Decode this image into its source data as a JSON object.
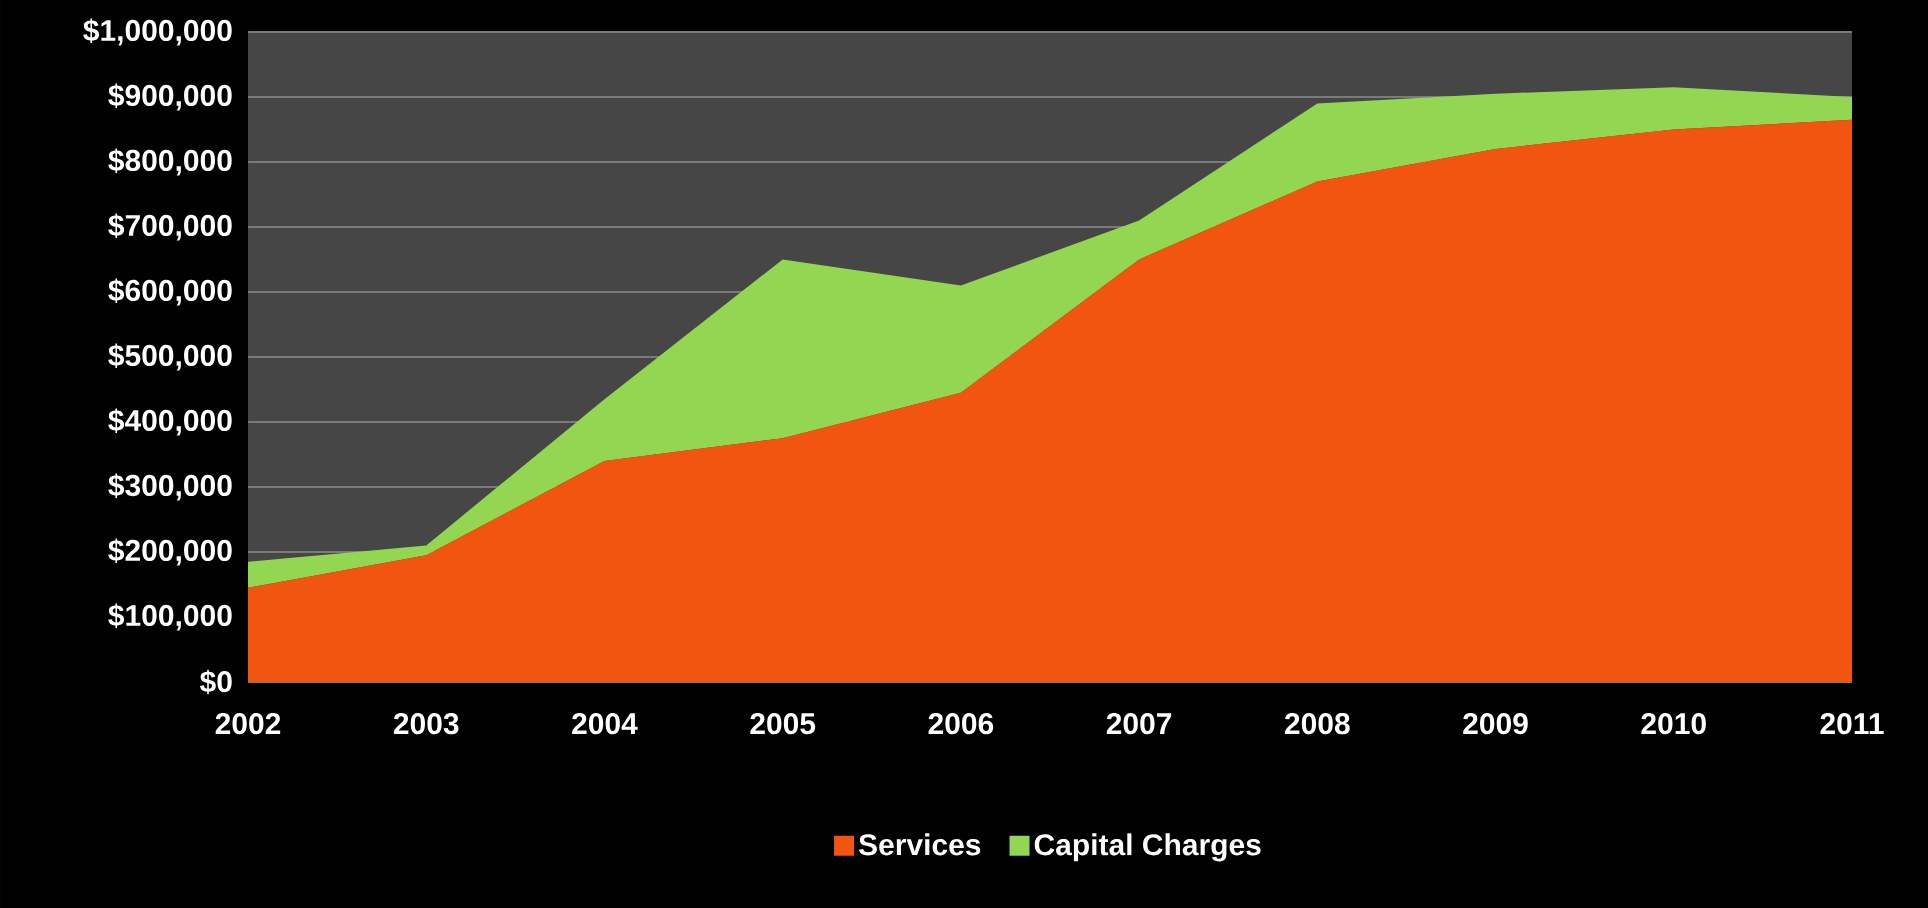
{
  "chart_data": {
    "type": "area",
    "stacked": true,
    "categories": [
      "2002",
      "2003",
      "2004",
      "2005",
      "2006",
      "2007",
      "2008",
      "2009",
      "2010",
      "2011"
    ],
    "series": [
      {
        "name": "Services",
        "color": "#f25510",
        "values": [
          145000,
          195000,
          340000,
          375000,
          445000,
          650000,
          770000,
          820000,
          850000,
          865000
        ]
      },
      {
        "name": "Capital Charges",
        "color": "#92d651",
        "values": [
          40000,
          15000,
          95000,
          275000,
          165000,
          60000,
          120000,
          85000,
          65000,
          35000
        ]
      }
    ],
    "ylim": [
      0,
      1000000
    ],
    "yticks": [
      {
        "value": 0,
        "label": "$0"
      },
      {
        "value": 100000,
        "label": "$100,000"
      },
      {
        "value": 200000,
        "label": "$200,000"
      },
      {
        "value": 300000,
        "label": "$300,000"
      },
      {
        "value": 400000,
        "label": "$400,000"
      },
      {
        "value": 500000,
        "label": "$500,000"
      },
      {
        "value": 600000,
        "label": "$600,000"
      },
      {
        "value": 700000,
        "label": "$700,000"
      },
      {
        "value": 800000,
        "label": "$800,000"
      },
      {
        "value": 900000,
        "label": "$900,000"
      },
      {
        "value": 1000000,
        "label": "$1,000,000"
      }
    ],
    "grid": "y",
    "legend": "bottom"
  }
}
